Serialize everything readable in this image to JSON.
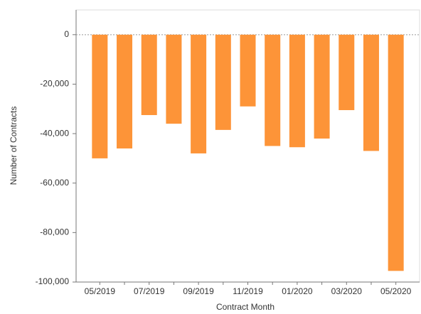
{
  "chart_data": {
    "type": "bar",
    "x_label": "Contract Month",
    "y_label": "Number of Contracts",
    "categories": [
      "05/2019",
      null,
      "07/2019",
      null,
      "09/2019",
      null,
      "11/2019",
      null,
      "01/2020",
      null,
      "03/2020",
      null,
      "05/2020"
    ],
    "values": [
      -50000,
      -46000,
      -32500,
      -36000,
      -48000,
      -38500,
      -29000,
      -45000,
      -45500,
      -42000,
      -30500,
      -47000,
      -95500
    ],
    "color": "#fd9438",
    "ylim": [
      -100000,
      10000
    ],
    "yticks": [
      {
        "value": -100000,
        "label": "-100,000"
      },
      {
        "value": -80000,
        "label": "-80,000"
      },
      {
        "value": -60000,
        "label": "-60,000"
      },
      {
        "value": -40000,
        "label": "-40,000"
      },
      {
        "value": -20000,
        "label": "-20,000"
      },
      0
    ]
  }
}
